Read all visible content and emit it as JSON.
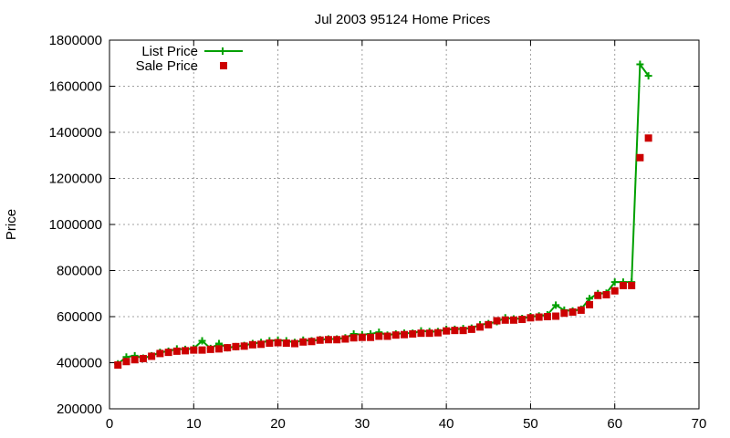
{
  "chart_data": {
    "type": "line",
    "title": "Jul 2003 95124 Home Prices",
    "xlabel": "",
    "ylabel": "Price",
    "xlim": [
      0,
      70
    ],
    "ylim": [
      200000,
      1800000
    ],
    "x_ticks": [
      "0",
      "10",
      "20",
      "30",
      "40",
      "50",
      "60",
      "70"
    ],
    "y_ticks": [
      "200000",
      "400000",
      "600000",
      "800000",
      "1000000",
      "1200000",
      "1400000",
      "1600000",
      "1800000"
    ],
    "grid": true,
    "legend_position": "top-left",
    "series": [
      {
        "name": "List Price",
        "style": "line-with-plus",
        "color": "#00a000",
        "points": [
          [
            1,
            395000
          ],
          [
            2,
            425000
          ],
          [
            3,
            430000
          ],
          [
            4,
            420000
          ],
          [
            5,
            430000
          ],
          [
            6,
            445000
          ],
          [
            7,
            450000
          ],
          [
            8,
            460000
          ],
          [
            9,
            458000
          ],
          [
            10,
            462000
          ],
          [
            11,
            495000
          ],
          [
            12,
            462000
          ],
          [
            13,
            483000
          ],
          [
            14,
            465000
          ],
          [
            15,
            470000
          ],
          [
            16,
            475000
          ],
          [
            17,
            483000
          ],
          [
            18,
            488000
          ],
          [
            19,
            495000
          ],
          [
            20,
            498000
          ],
          [
            21,
            495000
          ],
          [
            22,
            488000
          ],
          [
            23,
            498000
          ],
          [
            24,
            495000
          ],
          [
            25,
            500000
          ],
          [
            26,
            503000
          ],
          [
            27,
            503000
          ],
          [
            28,
            508000
          ],
          [
            29,
            525000
          ],
          [
            30,
            522000
          ],
          [
            31,
            525000
          ],
          [
            32,
            532000
          ],
          [
            33,
            520000
          ],
          [
            34,
            525000
          ],
          [
            35,
            528000
          ],
          [
            36,
            528000
          ],
          [
            37,
            538000
          ],
          [
            38,
            535000
          ],
          [
            39,
            535000
          ],
          [
            40,
            545000
          ],
          [
            41,
            545000
          ],
          [
            42,
            548000
          ],
          [
            43,
            550000
          ],
          [
            44,
            565000
          ],
          [
            45,
            570000
          ],
          [
            46,
            578000
          ],
          [
            47,
            595000
          ],
          [
            48,
            590000
          ],
          [
            49,
            592000
          ],
          [
            50,
            600000
          ],
          [
            51,
            603000
          ],
          [
            52,
            608000
          ],
          [
            53,
            650000
          ],
          [
            54,
            628000
          ],
          [
            55,
            625000
          ],
          [
            56,
            632000
          ],
          [
            57,
            678000
          ],
          [
            58,
            700000
          ],
          [
            59,
            702000
          ],
          [
            60,
            750000
          ],
          [
            61,
            750000
          ],
          [
            62,
            750000
          ],
          [
            63,
            1695000
          ],
          [
            64,
            1645000
          ]
        ]
      },
      {
        "name": "Sale Price",
        "style": "square-markers",
        "color": "#cc0000",
        "points": [
          [
            1,
            390000
          ],
          [
            2,
            405000
          ],
          [
            3,
            413000
          ],
          [
            4,
            418000
          ],
          [
            5,
            428000
          ],
          [
            6,
            440000
          ],
          [
            7,
            445000
          ],
          [
            8,
            450000
          ],
          [
            9,
            452000
          ],
          [
            10,
            455000
          ],
          [
            11,
            455000
          ],
          [
            12,
            458000
          ],
          [
            13,
            460000
          ],
          [
            14,
            465000
          ],
          [
            15,
            470000
          ],
          [
            16,
            472000
          ],
          [
            17,
            478000
          ],
          [
            18,
            480000
          ],
          [
            19,
            485000
          ],
          [
            20,
            487000
          ],
          [
            21,
            485000
          ],
          [
            22,
            483000
          ],
          [
            23,
            490000
          ],
          [
            24,
            492000
          ],
          [
            25,
            498000
          ],
          [
            26,
            500000
          ],
          [
            27,
            500000
          ],
          [
            28,
            503000
          ],
          [
            29,
            508000
          ],
          [
            30,
            510000
          ],
          [
            31,
            510000
          ],
          [
            32,
            515000
          ],
          [
            33,
            515000
          ],
          [
            34,
            520000
          ],
          [
            35,
            522000
          ],
          [
            36,
            525000
          ],
          [
            37,
            528000
          ],
          [
            38,
            528000
          ],
          [
            39,
            530000
          ],
          [
            40,
            538000
          ],
          [
            41,
            540000
          ],
          [
            42,
            540000
          ],
          [
            43,
            545000
          ],
          [
            44,
            555000
          ],
          [
            45,
            565000
          ],
          [
            46,
            582000
          ],
          [
            47,
            585000
          ],
          [
            48,
            585000
          ],
          [
            49,
            588000
          ],
          [
            50,
            595000
          ],
          [
            51,
            598000
          ],
          [
            52,
            600000
          ],
          [
            53,
            602000
          ],
          [
            54,
            615000
          ],
          [
            55,
            620000
          ],
          [
            56,
            628000
          ],
          [
            57,
            652000
          ],
          [
            58,
            692000
          ],
          [
            59,
            695000
          ],
          [
            60,
            712000
          ],
          [
            61,
            735000
          ],
          [
            62,
            735000
          ],
          [
            63,
            1290000
          ],
          [
            64,
            1375000
          ]
        ]
      }
    ]
  }
}
